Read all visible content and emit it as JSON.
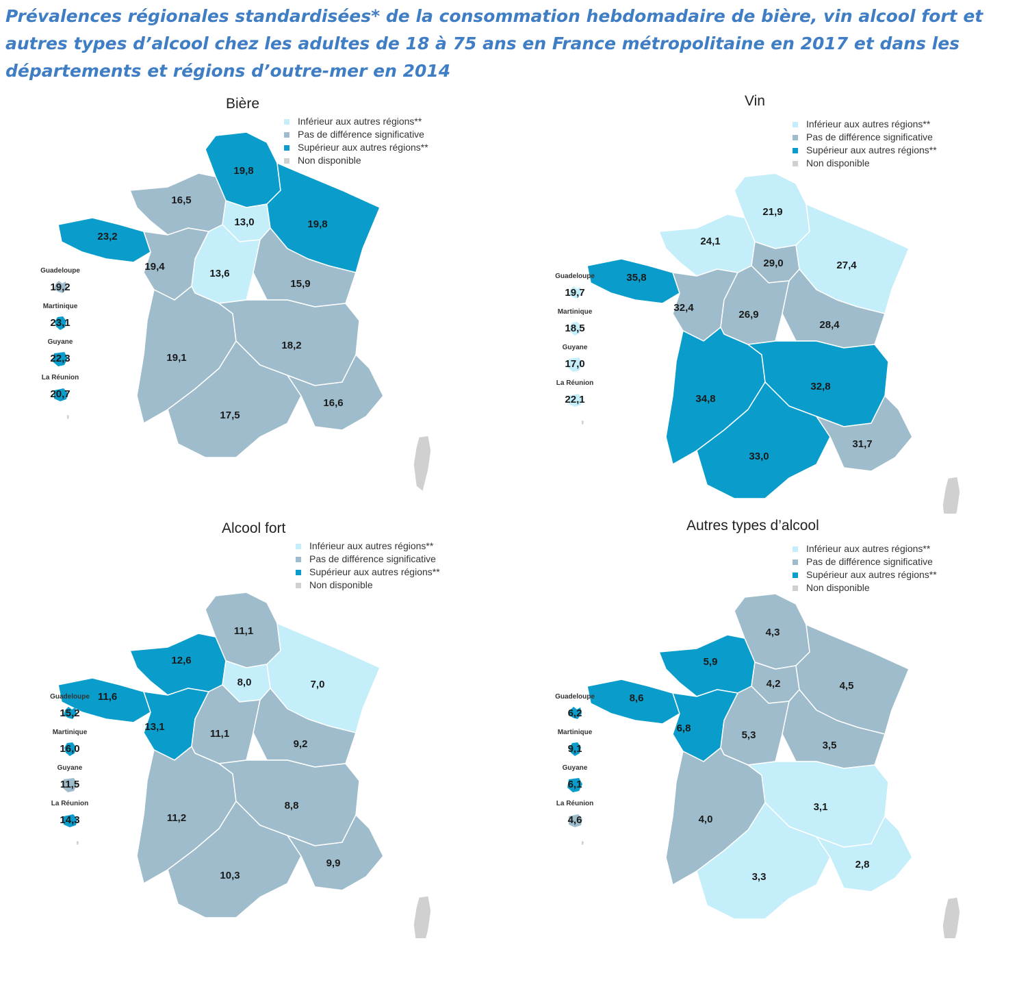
{
  "title": "Prévalences régionales standardisées* de la consommation hebdomadaire de bière, vin alcool fort et autres types d’alcool chez les adultes de 18 à 75 ans en France métropolitaine en 2017 et dans les départements et régions d’outre-mer en 2014",
  "legend": {
    "inferior": "Inférieur aux autres régions**",
    "nodiff": "Pas de différence significative",
    "superior": "Supérieur aux autres régions**",
    "na": "Non disponible"
  },
  "colors": {
    "inferior": "#c4eefa",
    "nodiff": "#9ebccb",
    "superior": "#0a9ccb",
    "na": "#d0d0d0"
  },
  "dom_names": [
    "Guadeloupe",
    "Martinique",
    "Guyane",
    "La Réunion"
  ],
  "chart_data": [
    {
      "type": "choropleth",
      "title": "Bière",
      "regions": [
        {
          "name": "Hauts-de-France",
          "value": "19,8",
          "category": "superior"
        },
        {
          "name": "Normandie",
          "value": "16,5",
          "category": "nodiff"
        },
        {
          "name": "Île-de-France",
          "value": "13,0",
          "category": "inferior"
        },
        {
          "name": "Grand Est",
          "value": "19,8",
          "category": "superior"
        },
        {
          "name": "Bretagne",
          "value": "23,2",
          "category": "superior"
        },
        {
          "name": "Pays de la Loire",
          "value": "19,4",
          "category": "nodiff"
        },
        {
          "name": "Centre-Val de Loire",
          "value": "13,6",
          "category": "inferior"
        },
        {
          "name": "Bourgogne-Franche-Comté",
          "value": "15,9",
          "category": "nodiff"
        },
        {
          "name": "Nouvelle-Aquitaine",
          "value": "19,1",
          "category": "nodiff"
        },
        {
          "name": "Auvergne-Rhône-Alpes",
          "value": "18,2",
          "category": "nodiff"
        },
        {
          "name": "Occitanie",
          "value": "17,5",
          "category": "nodiff"
        },
        {
          "name": "Provence-Alpes-Côte d'Azur",
          "value": "16,6",
          "category": "nodiff"
        },
        {
          "name": "Corse",
          "value": "",
          "category": "na"
        }
      ],
      "dom": [
        {
          "name": "Guadeloupe",
          "value": "19,2",
          "category": "nodiff"
        },
        {
          "name": "Martinique",
          "value": "23,1",
          "category": "superior"
        },
        {
          "name": "Guyane",
          "value": "22,3",
          "category": "superior"
        },
        {
          "name": "La Réunion",
          "value": "20,7",
          "category": "superior"
        }
      ]
    },
    {
      "type": "choropleth",
      "title": "Vin",
      "regions": [
        {
          "name": "Hauts-de-France",
          "value": "21,9",
          "category": "inferior"
        },
        {
          "name": "Normandie",
          "value": "24,1",
          "category": "inferior"
        },
        {
          "name": "Île-de-France",
          "value": "29,0",
          "category": "nodiff"
        },
        {
          "name": "Grand Est",
          "value": "27,4",
          "category": "inferior"
        },
        {
          "name": "Bretagne",
          "value": "35,8",
          "category": "superior"
        },
        {
          "name": "Pays de la Loire",
          "value": "32,4",
          "category": "nodiff"
        },
        {
          "name": "Centre-Val de Loire",
          "value": "26,9",
          "category": "nodiff"
        },
        {
          "name": "Bourgogne-Franche-Comté",
          "value": "28,4",
          "category": "nodiff"
        },
        {
          "name": "Nouvelle-Aquitaine",
          "value": "34,8",
          "category": "superior"
        },
        {
          "name": "Auvergne-Rhône-Alpes",
          "value": "32,8",
          "category": "superior"
        },
        {
          "name": "Occitanie",
          "value": "33,0",
          "category": "superior"
        },
        {
          "name": "Provence-Alpes-Côte d'Azur",
          "value": "31,7",
          "category": "nodiff"
        },
        {
          "name": "Corse",
          "value": "",
          "category": "na"
        }
      ],
      "dom": [
        {
          "name": "Guadeloupe",
          "value": "19,7",
          "category": "inferior"
        },
        {
          "name": "Martinique",
          "value": "18,5",
          "category": "inferior"
        },
        {
          "name": "Guyane",
          "value": "17,0",
          "category": "inferior"
        },
        {
          "name": "La Réunion",
          "value": "22,1",
          "category": "inferior"
        }
      ]
    },
    {
      "type": "choropleth",
      "title": "Alcool fort",
      "regions": [
        {
          "name": "Hauts-de-France",
          "value": "11,1",
          "category": "nodiff"
        },
        {
          "name": "Normandie",
          "value": "12,6",
          "category": "superior"
        },
        {
          "name": "Île-de-France",
          "value": "8,0",
          "category": "inferior"
        },
        {
          "name": "Grand Est",
          "value": "7,0",
          "category": "inferior"
        },
        {
          "name": "Bretagne",
          "value": "11,6",
          "category": "superior"
        },
        {
          "name": "Pays de la Loire",
          "value": "13,1",
          "category": "superior"
        },
        {
          "name": "Centre-Val de Loire",
          "value": "11,1",
          "category": "nodiff"
        },
        {
          "name": "Bourgogne-Franche-Comté",
          "value": "9,2",
          "category": "nodiff"
        },
        {
          "name": "Nouvelle-Aquitaine",
          "value": "11,2",
          "category": "nodiff"
        },
        {
          "name": "Auvergne-Rhône-Alpes",
          "value": "8,8",
          "category": "nodiff"
        },
        {
          "name": "Occitanie",
          "value": "10,3",
          "category": "nodiff"
        },
        {
          "name": "Provence-Alpes-Côte d'Azur",
          "value": "9,9",
          "category": "nodiff"
        },
        {
          "name": "Corse",
          "value": "",
          "category": "na"
        }
      ],
      "dom": [
        {
          "name": "Guadeloupe",
          "value": "15,2",
          "category": "superior"
        },
        {
          "name": "Martinique",
          "value": "16,0",
          "category": "superior"
        },
        {
          "name": "Guyane",
          "value": "11,5",
          "category": "nodiff"
        },
        {
          "name": "La Réunion",
          "value": "14,3",
          "category": "superior"
        }
      ]
    },
    {
      "type": "choropleth",
      "title": "Autres types d’alcool",
      "regions": [
        {
          "name": "Hauts-de-France",
          "value": "4,3",
          "category": "nodiff"
        },
        {
          "name": "Normandie",
          "value": "5,9",
          "category": "superior"
        },
        {
          "name": "Île-de-France",
          "value": "4,2",
          "category": "nodiff"
        },
        {
          "name": "Grand Est",
          "value": "4,5",
          "category": "nodiff"
        },
        {
          "name": "Bretagne",
          "value": "8,6",
          "category": "superior"
        },
        {
          "name": "Pays de la Loire",
          "value": "6,8",
          "category": "superior"
        },
        {
          "name": "Centre-Val de Loire",
          "value": "5,3",
          "category": "nodiff"
        },
        {
          "name": "Bourgogne-Franche-Comté",
          "value": "3,5",
          "category": "nodiff"
        },
        {
          "name": "Nouvelle-Aquitaine",
          "value": "4,0",
          "category": "nodiff"
        },
        {
          "name": "Auvergne-Rhône-Alpes",
          "value": "3,1",
          "category": "inferior"
        },
        {
          "name": "Occitanie",
          "value": "3,3",
          "category": "inferior"
        },
        {
          "name": "Provence-Alpes-Côte d'Azur",
          "value": "2,8",
          "category": "inferior"
        },
        {
          "name": "Corse",
          "value": "",
          "category": "na"
        }
      ],
      "dom": [
        {
          "name": "Guadeloupe",
          "value": "6,2",
          "category": "superior"
        },
        {
          "name": "Martinique",
          "value": "9,1",
          "category": "superior"
        },
        {
          "name": "Guyane",
          "value": "6,1",
          "category": "superior"
        },
        {
          "name": "La Réunion",
          "value": "4,6",
          "category": "nodiff"
        }
      ]
    }
  ]
}
